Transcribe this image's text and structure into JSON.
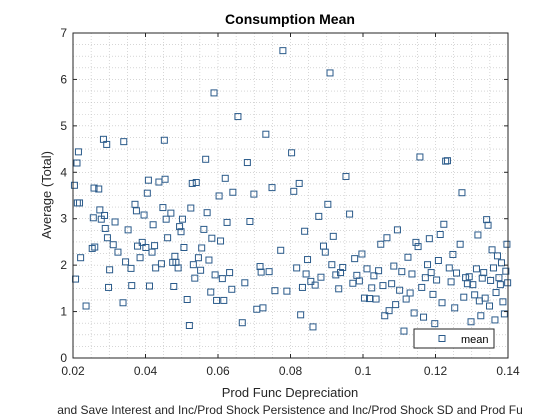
{
  "chart_data": {
    "type": "scatter",
    "title": "Consumption Mean",
    "xlabel": "Prod Func Depreciation",
    "ylabel": "Average (Total)",
    "caption": "and Save Interest and Inc/Prod Shock Persistence and Inc/Prod Shock SD and Prod Fu",
    "xlim": [
      0.02,
      0.14
    ],
    "ylim": [
      0,
      7
    ],
    "xticks": [
      "0.02",
      "0.04",
      "0.06",
      "0.08",
      "0.1",
      "0.12",
      "0.14"
    ],
    "yticks": [
      "0",
      "1",
      "2",
      "3",
      "4",
      "5",
      "6",
      "7"
    ],
    "grid": "minor-dotted",
    "legend": {
      "placement": "bottom-right",
      "entries": [
        "mean"
      ]
    },
    "marker_color": "#2a5a8a",
    "series": [
      {
        "name": "mean",
        "points": [
          [
            0.0204,
            3.72
          ],
          [
            0.0207,
            1.7
          ],
          [
            0.0211,
            4.2
          ],
          [
            0.0212,
            3.34
          ],
          [
            0.0215,
            4.44
          ],
          [
            0.0218,
            3.34
          ],
          [
            0.0221,
            2.16
          ],
          [
            0.0236,
            1.12
          ],
          [
            0.0253,
            2.36
          ],
          [
            0.0256,
            3.02
          ],
          [
            0.0258,
            3.66
          ],
          [
            0.026,
            2.39
          ],
          [
            0.0271,
            3.64
          ],
          [
            0.0274,
            3.19
          ],
          [
            0.0278,
            2.99
          ],
          [
            0.0284,
            4.71
          ],
          [
            0.0287,
            3.07
          ],
          [
            0.0289,
            2.79
          ],
          [
            0.0293,
            4.6
          ],
          [
            0.0295,
            2.59
          ],
          [
            0.0298,
            1.52
          ],
          [
            0.0301,
            1.9
          ],
          [
            0.0311,
            2.44
          ],
          [
            0.0316,
            2.93
          ],
          [
            0.0324,
            2.28
          ],
          [
            0.0338,
            1.19
          ],
          [
            0.034,
            4.66
          ],
          [
            0.0345,
            2.07
          ],
          [
            0.0352,
            2.76
          ],
          [
            0.036,
            1.93
          ],
          [
            0.0362,
            1.56
          ],
          [
            0.0371,
            3.31
          ],
          [
            0.0375,
            3.17
          ],
          [
            0.0378,
            2.41
          ],
          [
            0.0385,
            2.16
          ],
          [
            0.0391,
            2.49
          ],
          [
            0.0396,
            3.08
          ],
          [
            0.0401,
            2.38
          ],
          [
            0.0405,
            3.55
          ],
          [
            0.0408,
            3.83
          ],
          [
            0.0411,
            1.55
          ],
          [
            0.0418,
            2.28
          ],
          [
            0.0421,
            2.87
          ],
          [
            0.0425,
            2.42
          ],
          [
            0.0428,
            1.94
          ],
          [
            0.0437,
            3.79
          ],
          [
            0.0444,
            2.03
          ],
          [
            0.0448,
            3.24
          ],
          [
            0.0452,
            4.69
          ],
          [
            0.0454,
            3.85
          ],
          [
            0.0457,
            2.99
          ],
          [
            0.0461,
            2.59
          ],
          [
            0.047,
            3.12
          ],
          [
            0.0475,
            2.06
          ],
          [
            0.0478,
            1.54
          ],
          [
            0.0481,
            2.19
          ],
          [
            0.0484,
            2.06
          ],
          [
            0.049,
            1.94
          ],
          [
            0.0494,
            2.83
          ],
          [
            0.0498,
            2.72
          ],
          [
            0.0502,
            2.99
          ],
          [
            0.0506,
            2.38
          ],
          [
            0.0515,
            1.26
          ],
          [
            0.0521,
            0.7
          ],
          [
            0.0525,
            3.23
          ],
          [
            0.0529,
            3.76
          ],
          [
            0.0532,
            2.01
          ],
          [
            0.0536,
            1.72
          ],
          [
            0.054,
            3.78
          ],
          [
            0.0546,
            2.16
          ],
          [
            0.0552,
            1.89
          ],
          [
            0.0555,
            2.37
          ],
          [
            0.0561,
            2.77
          ],
          [
            0.0566,
            4.28
          ],
          [
            0.057,
            3.13
          ],
          [
            0.0575,
            2.11
          ],
          [
            0.058,
            1.42
          ],
          [
            0.0583,
            2.58
          ],
          [
            0.0589,
            5.71
          ],
          [
            0.0592,
            1.79
          ],
          [
            0.0596,
            1.24
          ],
          [
            0.0603,
            3.49
          ],
          [
            0.0607,
            2.52
          ],
          [
            0.0612,
            1.71
          ],
          [
            0.0616,
            1.24
          ],
          [
            0.062,
            3.87
          ],
          [
            0.0625,
            2.92
          ],
          [
            0.0632,
            1.84
          ],
          [
            0.0638,
            1.48
          ],
          [
            0.0641,
            3.57
          ],
          [
            0.0655,
            5.2
          ],
          [
            0.0667,
            0.76
          ],
          [
            0.0674,
            1.62
          ],
          [
            0.0681,
            4.21
          ],
          [
            0.0688,
            2.94
          ],
          [
            0.0699,
            3.53
          ],
          [
            0.0707,
            1.05
          ],
          [
            0.0716,
            1.97
          ],
          [
            0.0719,
            1.85
          ],
          [
            0.0724,
            1.08
          ],
          [
            0.0732,
            4.82
          ],
          [
            0.0741,
            1.86
          ],
          [
            0.0749,
            3.67
          ],
          [
            0.0757,
            1.45
          ],
          [
            0.0773,
            2.32
          ],
          [
            0.0779,
            6.62
          ],
          [
            0.079,
            1.44
          ],
          [
            0.0803,
            4.42
          ],
          [
            0.0809,
            3.59
          ],
          [
            0.0817,
            1.94
          ],
          [
            0.0824,
            3.76
          ],
          [
            0.0828,
            0.93
          ],
          [
            0.0833,
            1.52
          ],
          [
            0.0839,
            2.73
          ],
          [
            0.0843,
            1.81
          ],
          [
            0.0847,
            2.12
          ],
          [
            0.0856,
            1.65
          ],
          [
            0.0862,
            0.67
          ],
          [
            0.0868,
            1.57
          ],
          [
            0.0878,
            3.05
          ],
          [
            0.0884,
            1.74
          ],
          [
            0.0891,
            2.41
          ],
          [
            0.0896,
            2.28
          ],
          [
            0.0903,
            3.31
          ],
          [
            0.0909,
            6.14
          ],
          [
            0.0914,
            2.01
          ],
          [
            0.0918,
            2.62
          ],
          [
            0.0925,
            1.79
          ],
          [
            0.0933,
            1.49
          ],
          [
            0.0938,
            1.84
          ],
          [
            0.0944,
            1.95
          ],
          [
            0.0953,
            3.91
          ],
          [
            0.0963,
            3.1
          ],
          [
            0.0972,
            1.61
          ],
          [
            0.0977,
            2.14
          ],
          [
            0.0983,
            1.78
          ],
          [
            0.099,
            1.66
          ],
          [
            0.0997,
            2.24
          ],
          [
            0.1004,
            1.29
          ],
          [
            0.1011,
            1.92
          ],
          [
            0.1018,
            1.28
          ],
          [
            0.1024,
            1.51
          ],
          [
            0.103,
            1.77
          ],
          [
            0.1036,
            1.27
          ],
          [
            0.1043,
            1.88
          ],
          [
            0.1049,
            2.45
          ],
          [
            0.1055,
            1.56
          ],
          [
            0.106,
            0.91
          ],
          [
            0.1066,
            2.59
          ],
          [
            0.1072,
            1.02
          ],
          [
            0.1079,
            1.6
          ],
          [
            0.1085,
            1.98
          ],
          [
            0.109,
            1.15
          ],
          [
            0.1095,
            2.76
          ],
          [
            0.1101,
            1.46
          ],
          [
            0.1107,
            1.86
          ],
          [
            0.1113,
            0.58
          ],
          [
            0.1119,
            1.27
          ],
          [
            0.1124,
            2.17
          ],
          [
            0.113,
            1.4
          ],
          [
            0.1135,
            1.81
          ],
          [
            0.1141,
            0.97
          ],
          [
            0.1146,
            2.49
          ],
          [
            0.1152,
            2.4
          ],
          [
            0.1157,
            4.33
          ],
          [
            0.1162,
            1.52
          ],
          [
            0.1167,
            0.88
          ],
          [
            0.1172,
            1.73
          ],
          [
            0.1178,
            2.01
          ],
          [
            0.1183,
            2.57
          ],
          [
            0.1188,
            1.84
          ],
          [
            0.1193,
            1.37
          ],
          [
            0.1198,
            0.74
          ],
          [
            0.1203,
            1.68
          ],
          [
            0.1208,
            2.1
          ],
          [
            0.1213,
            2.66
          ],
          [
            0.1218,
            1.19
          ],
          [
            0.1223,
            2.88
          ],
          [
            0.1228,
            4.24
          ],
          [
            0.1233,
            4.25
          ],
          [
            0.1238,
            1.94
          ],
          [
            0.1243,
            1.64
          ],
          [
            0.1248,
            2.23
          ],
          [
            0.1253,
            1.08
          ],
          [
            0.1258,
            1.83
          ],
          [
            0.1263,
            0.55
          ],
          [
            0.1268,
            2.45
          ],
          [
            0.1273,
            3.56
          ],
          [
            0.1278,
            1.31
          ],
          [
            0.1283,
            1.73
          ],
          [
            0.1288,
            1.6
          ],
          [
            0.1293,
            1.75
          ],
          [
            0.1298,
            0.78
          ],
          [
            0.1303,
            1.58
          ],
          [
            0.1308,
            1.36
          ],
          [
            0.1313,
            1.92
          ],
          [
            0.1317,
            2.65
          ],
          [
            0.1321,
            1.23
          ],
          [
            0.1325,
            0.91
          ],
          [
            0.1329,
            1.72
          ],
          [
            0.1333,
            1.84
          ],
          [
            0.1337,
            1.29
          ],
          [
            0.1341,
            2.98
          ],
          [
            0.1345,
            2.86
          ],
          [
            0.1349,
            1.12
          ],
          [
            0.1352,
            1.67
          ],
          [
            0.1356,
            2.33
          ],
          [
            0.136,
            1.94
          ],
          [
            0.1364,
            0.82
          ],
          [
            0.1367,
            1.41
          ],
          [
            0.1371,
            2.2
          ],
          [
            0.1375,
            1.73
          ],
          [
            0.1379,
            1.58
          ],
          [
            0.1382,
            2.05
          ],
          [
            0.1386,
            1.21
          ],
          [
            0.139,
            0.95
          ],
          [
            0.1394,
            1.87
          ],
          [
            0.1397,
            2.45
          ],
          [
            0.1399,
            1.62
          ]
        ]
      }
    ]
  }
}
